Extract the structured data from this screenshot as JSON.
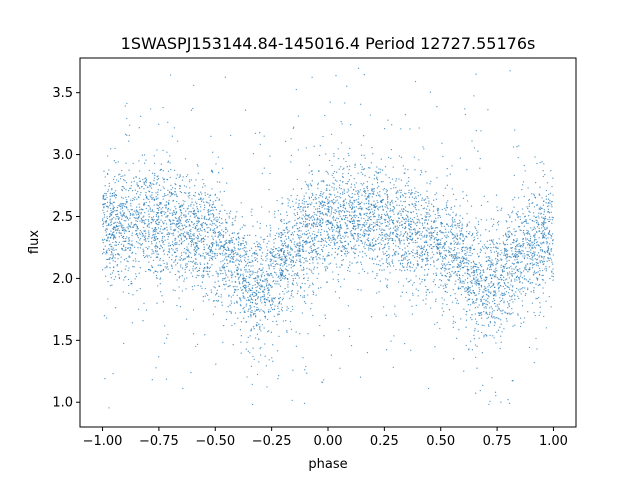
{
  "chart_data": {
    "type": "scatter",
    "title": "1SWASPJ153144.84-145016.4 Period 12727.55176s",
    "xlabel": "phase",
    "ylabel": "flux",
    "xlim": [
      -1.1,
      1.1
    ],
    "ylim": [
      0.8,
      3.78
    ],
    "xticks": [
      -1.0,
      -0.75,
      -0.5,
      -0.25,
      0.0,
      0.25,
      0.5,
      0.75,
      1.0
    ],
    "xtick_labels": [
      "−1.00",
      "−0.75",
      "−0.50",
      "−0.25",
      "0.00",
      "0.25",
      "0.50",
      "0.75",
      "1.00"
    ],
    "yticks": [
      1.0,
      1.5,
      2.0,
      2.5,
      3.0,
      3.5
    ],
    "ytick_labels": [
      "1.0",
      "1.5",
      "2.0",
      "2.5",
      "3.0",
      "3.5"
    ],
    "grid": false,
    "point_color": "#1f77b4",
    "series": [
      {
        "phase": [
          -1.0,
          -0.9,
          -0.8,
          -0.7,
          -0.6,
          -0.5,
          -0.4,
          -0.35,
          -0.3,
          -0.25,
          -0.2,
          -0.1,
          0.0,
          0.1,
          0.2,
          0.3,
          0.4,
          0.5,
          0.6,
          0.65,
          0.7,
          0.75,
          0.8,
          0.9,
          1.0
        ],
        "flux": [
          2.4,
          2.45,
          2.47,
          2.45,
          2.38,
          2.28,
          2.1,
          1.98,
          1.9,
          1.98,
          2.15,
          2.35,
          2.43,
          2.47,
          2.48,
          2.44,
          2.35,
          2.25,
          2.1,
          1.98,
          1.9,
          1.98,
          2.1,
          2.3,
          2.38
        ],
        "scatter_spread": 0.22,
        "flux_range": [
          0.95,
          3.7
        ]
      }
    ]
  }
}
